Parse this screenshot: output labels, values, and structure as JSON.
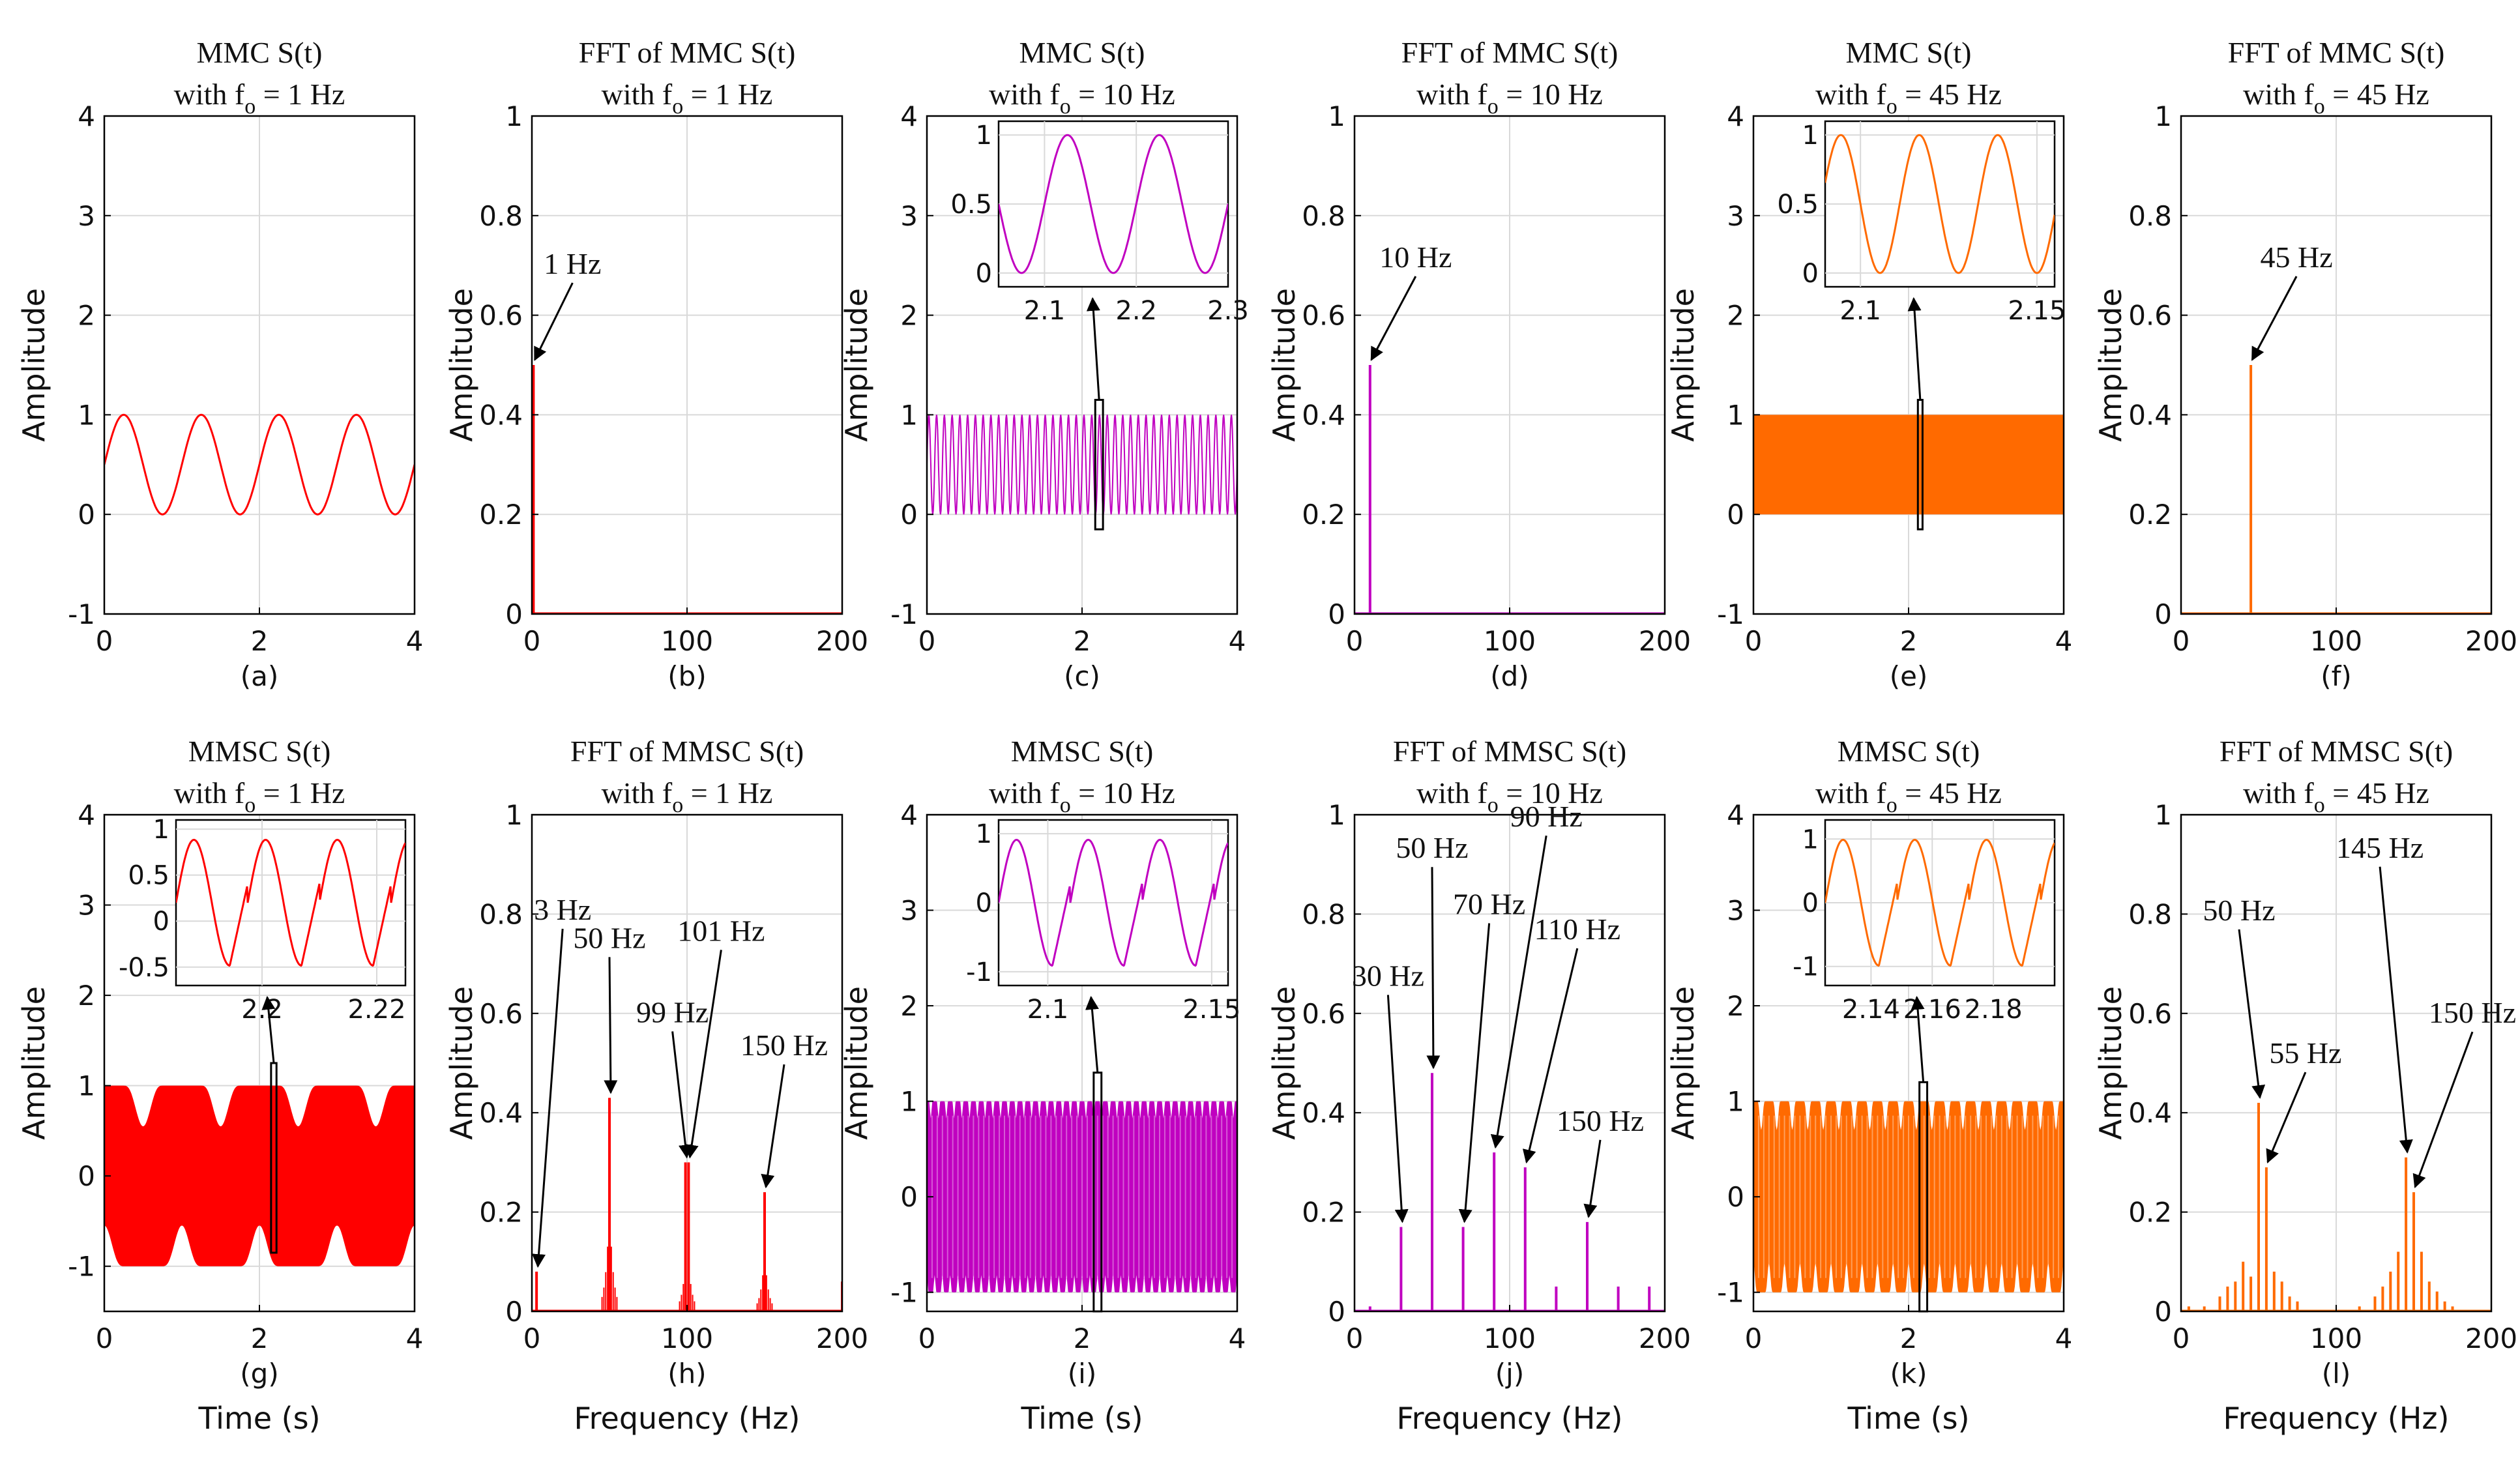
{
  "figure": {
    "colors": {
      "red": "#ff0000",
      "magenta": "#c000c0",
      "orange": "#ff6a00",
      "arrow": "#000000"
    }
  },
  "chart_data": [
    {
      "id": "a",
      "type": "line",
      "panel_label": "(a)",
      "title": [
        "MMC S(t)",
        "with f",
        "o",
        " = 1 Hz"
      ],
      "xlabel": "",
      "ylabel": "Amplitude",
      "xlim": [
        0,
        4
      ],
      "ylim": [
        -1,
        4
      ],
      "xticks": [
        "0",
        "2",
        "4"
      ],
      "yticks": [
        "-1",
        "0",
        "1",
        "2",
        "3",
        "4"
      ],
      "color": "red",
      "series": [
        {
          "name": "S(t)",
          "kind": "sine",
          "freq": 1,
          "offset": 0.5,
          "amp": 0.5,
          "phase": 0.0
        }
      ]
    },
    {
      "id": "b",
      "type": "bar",
      "panel_label": "(b)",
      "title": [
        "FFT of MMC S(t)",
        "with f",
        "o",
        " = 1 Hz"
      ],
      "xlabel": "",
      "ylabel": "Amplitude",
      "xlim": [
        0,
        200
      ],
      "ylim": [
        0,
        1
      ],
      "xticks": [
        "0",
        "100",
        "200"
      ],
      "yticks": [
        "0",
        "0.2",
        "0.4",
        "0.6",
        "0.8",
        "1"
      ],
      "color": "red",
      "peaks": [
        {
          "x": 1,
          "y": 0.5
        }
      ],
      "annotations": [
        {
          "text": "1 Hz",
          "x": 1,
          "y": 0.5
        }
      ]
    },
    {
      "id": "c",
      "type": "line",
      "panel_label": "(c)",
      "title": [
        "MMC S(t)",
        "with f",
        "o",
        " = 10 Hz"
      ],
      "xlabel": "",
      "ylabel": "Amplitude",
      "xlim": [
        0,
        4
      ],
      "ylim": [
        -1,
        4
      ],
      "xticks": [
        "0",
        "2",
        "4"
      ],
      "yticks": [
        "-1",
        "0",
        "1",
        "2",
        "3",
        "4"
      ],
      "color": "magenta",
      "series": [
        {
          "name": "S(t)",
          "kind": "sine",
          "freq": 10,
          "offset": 0.5,
          "amp": 0.5,
          "phase": 0.0
        }
      ],
      "inset": {
        "xlim": [
          2.05,
          2.3
        ],
        "ylim": [
          -0.1,
          1.1
        ],
        "xticks": [
          "2.1",
          "2.2",
          "2.3"
        ],
        "yticks": [
          "0",
          "0.5",
          "1"
        ],
        "zoom_box": [
          2.17,
          2.27,
          -0.15,
          1.15
        ],
        "series": [
          {
            "kind": "sine",
            "freq": 10,
            "offset": 0.5,
            "amp": 0.5,
            "phase": 0.0
          }
        ]
      }
    },
    {
      "id": "d",
      "type": "bar",
      "panel_label": "(d)",
      "title": [
        "FFT of MMC S(t)",
        "with f",
        "o",
        " = 10 Hz"
      ],
      "xlabel": "",
      "ylabel": "Amplitude",
      "xlim": [
        0,
        200
      ],
      "ylim": [
        0,
        1
      ],
      "xticks": [
        "0",
        "100",
        "200"
      ],
      "yticks": [
        "0",
        "0.2",
        "0.4",
        "0.6",
        "0.8",
        "1"
      ],
      "color": "magenta",
      "peaks": [
        {
          "x": 10,
          "y": 0.5
        }
      ],
      "annotations": [
        {
          "text": "10 Hz",
          "x": 10,
          "y": 0.5
        }
      ]
    },
    {
      "id": "e",
      "type": "line",
      "panel_label": "(e)",
      "title": [
        "MMC S(t)",
        "with f",
        "o",
        " = 45 Hz"
      ],
      "xlabel": "",
      "ylabel": "Amplitude",
      "xlim": [
        0,
        4
      ],
      "ylim": [
        -1,
        4
      ],
      "xticks": [
        "0",
        "2",
        "4"
      ],
      "yticks": [
        "-1",
        "0",
        "1",
        "2",
        "3",
        "4"
      ],
      "color": "orange",
      "series": [
        {
          "name": "S(t)",
          "kind": "sine",
          "freq": 45,
          "offset": 0.5,
          "amp": 0.5,
          "phase": 0.0
        }
      ],
      "inset": {
        "xlim": [
          2.09,
          2.155
        ],
        "ylim": [
          -0.1,
          1.1
        ],
        "xticks": [
          "2.1",
          "2.15"
        ],
        "yticks": [
          "0",
          "0.5",
          "1"
        ],
        "zoom_box": [
          2.12,
          2.18,
          -0.15,
          1.15
        ],
        "series": [
          {
            "kind": "sine",
            "freq": 45,
            "offset": 0.5,
            "amp": 0.5,
            "phase": 0.0
          }
        ]
      }
    },
    {
      "id": "f",
      "type": "bar",
      "panel_label": "(f)",
      "title": [
        "FFT of MMC S(t)",
        "with f",
        "o",
        " = 45 Hz"
      ],
      "xlabel": "",
      "ylabel": "Amplitude",
      "xlim": [
        0,
        200
      ],
      "ylim": [
        0,
        1
      ],
      "xticks": [
        "0",
        "100",
        "200"
      ],
      "yticks": [
        "0",
        "0.2",
        "0.4",
        "0.6",
        "0.8",
        "1"
      ],
      "color": "orange",
      "peaks": [
        {
          "x": 45,
          "y": 0.5
        }
      ],
      "annotations": [
        {
          "text": "45 Hz",
          "x": 45,
          "y": 0.5
        }
      ]
    },
    {
      "id": "g",
      "type": "line",
      "panel_label": "(g)",
      "title": [
        "MMSC S(t)",
        "with f",
        "o",
        " = 1 Hz"
      ],
      "xlabel": "Time (s)",
      "ylabel": "Amplitude",
      "xlim": [
        0,
        4
      ],
      "ylim": [
        -1.5,
        4
      ],
      "xticks": [
        "0",
        "2",
        "4"
      ],
      "yticks": [
        "-1",
        "0",
        "1",
        "2",
        "3",
        "4"
      ],
      "color": "red",
      "series": [
        {
          "name": "S(t)",
          "kind": "dense_envelope",
          "upper": 1,
          "lower": -1,
          "notch_depth": 0.45,
          "notch_period": 1.0
        }
      ],
      "inset": {
        "xlim": [
          2.185,
          2.225
        ],
        "ylim": [
          -0.7,
          1.1
        ],
        "xticks": [
          "2.2",
          "2.22"
        ],
        "yticks": [
          "-0.5",
          "0",
          "0.5",
          "1"
        ],
        "zoom_box": [
          2.15,
          2.22,
          -0.85,
          1.25
        ],
        "series": [
          {
            "kind": "sawsine"
          }
        ]
      }
    },
    {
      "id": "h",
      "type": "bar",
      "panel_label": "(h)",
      "title": [
        "FFT of MMSC S(t)",
        "with f",
        "o",
        " = 1 Hz"
      ],
      "xlabel": "Frequency (Hz)",
      "ylabel": "Amplitude",
      "xlim": [
        0,
        200
      ],
      "ylim": [
        0,
        1
      ],
      "xticks": [
        "0",
        "100",
        "200"
      ],
      "yticks": [
        "0",
        "0.2",
        "0.4",
        "0.6",
        "0.8",
        "1"
      ],
      "color": "red",
      "peaks": [
        {
          "x": 3,
          "y": 0.08
        },
        {
          "x": 50,
          "y": 0.43
        },
        {
          "x": 99,
          "y": 0.3
        },
        {
          "x": 101,
          "y": 0.3
        },
        {
          "x": 150,
          "y": 0.24
        },
        {
          "x": 200,
          "y": 0.06
        }
      ],
      "annotations": [
        {
          "text": "3 Hz",
          "x": 3,
          "y": 0.08
        },
        {
          "text": "50 Hz",
          "x": 50,
          "y": 0.43
        },
        {
          "text": "99 Hz",
          "x": 99,
          "y": 0.3
        },
        {
          "text": "101 Hz",
          "x": 101,
          "y": 0.3
        },
        {
          "text": "150 Hz",
          "x": 150,
          "y": 0.24
        }
      ]
    },
    {
      "id": "i",
      "type": "line",
      "panel_label": "(i)",
      "title": [
        "MMSC S(t)",
        "with f",
        "o",
        " = 10 Hz"
      ],
      "xlabel": "Time (s)",
      "ylabel": "Amplitude",
      "xlim": [
        0,
        4
      ],
      "ylim": [
        -1.2,
        4
      ],
      "xticks": [
        "0",
        "2",
        "4"
      ],
      "yticks": [
        "-1",
        "0",
        "1",
        "2",
        "3",
        "4"
      ],
      "color": "magenta",
      "series": [
        {
          "name": "S(t)",
          "kind": "dense_envelope",
          "upper": 1,
          "lower": -1,
          "notch_depth": 0.18,
          "notch_period": 0.1
        }
      ],
      "inset": {
        "xlim": [
          2.085,
          2.155
        ],
        "ylim": [
          -1.2,
          1.2
        ],
        "xticks": [
          "2.1",
          "2.15"
        ],
        "yticks": [
          "-1",
          "0",
          "1"
        ],
        "zoom_box": [
          2.15,
          2.25,
          -1.2,
          1.3
        ],
        "series": [
          {
            "kind": "sawsine"
          }
        ]
      }
    },
    {
      "id": "j",
      "type": "bar",
      "panel_label": "(j)",
      "title": [
        "FFT of MMSC S(t)",
        "with f",
        "o",
        " = 10 Hz"
      ],
      "xlabel": "Frequency (Hz)",
      "ylabel": "Amplitude",
      "xlim": [
        0,
        200
      ],
      "ylim": [
        0,
        1
      ],
      "xticks": [
        "0",
        "100",
        "200"
      ],
      "yticks": [
        "0",
        "0.2",
        "0.4",
        "0.6",
        "0.8",
        "1"
      ],
      "color": "magenta",
      "peaks": [
        {
          "x": 10,
          "y": 0.01
        },
        {
          "x": 30,
          "y": 0.17
        },
        {
          "x": 50,
          "y": 0.48
        },
        {
          "x": 70,
          "y": 0.17
        },
        {
          "x": 90,
          "y": 0.32
        },
        {
          "x": 110,
          "y": 0.29
        },
        {
          "x": 130,
          "y": 0.05
        },
        {
          "x": 150,
          "y": 0.18
        },
        {
          "x": 170,
          "y": 0.05
        },
        {
          "x": 190,
          "y": 0.05
        }
      ],
      "annotations": [
        {
          "text": "30 Hz",
          "x": 30,
          "y": 0.17
        },
        {
          "text": "50 Hz",
          "x": 50,
          "y": 0.48
        },
        {
          "text": "70 Hz",
          "x": 70,
          "y": 0.17
        },
        {
          "text": "90 Hz",
          "x": 90,
          "y": 0.32
        },
        {
          "text": "110 Hz",
          "x": 110,
          "y": 0.29
        },
        {
          "text": "150 Hz",
          "x": 150,
          "y": 0.18
        }
      ]
    },
    {
      "id": "k",
      "type": "line",
      "panel_label": "(k)",
      "title": [
        "MMSC S(t)",
        "with f",
        "o",
        " = 45 Hz"
      ],
      "xlabel": "Time (s)",
      "ylabel": "Amplitude",
      "xlim": [
        0,
        4
      ],
      "ylim": [
        -1.2,
        4
      ],
      "xticks": [
        "0",
        "2",
        "4"
      ],
      "yticks": [
        "-1",
        "0",
        "1",
        "2",
        "3",
        "4"
      ],
      "color": "orange",
      "series": [
        {
          "name": "S(t)",
          "kind": "dense_envelope",
          "upper": 1,
          "lower": -1,
          "notch_depth": 0.3,
          "notch_period": 0.2
        }
      ],
      "inset": {
        "xlim": [
          2.125,
          2.2
        ],
        "ylim": [
          -1.3,
          1.3
        ],
        "xticks": [
          "2.14",
          "2.16",
          "2.18"
        ],
        "yticks": [
          "-1",
          "0",
          "1"
        ],
        "zoom_box": [
          2.14,
          2.24,
          -1.2,
          1.2
        ],
        "series": [
          {
            "kind": "sawsine"
          }
        ]
      }
    },
    {
      "id": "l",
      "type": "bar",
      "panel_label": "(l)",
      "title": [
        "FFT of MMSC S(t)",
        "with f",
        "o",
        " = 45 Hz"
      ],
      "xlabel": "Frequency (Hz)",
      "ylabel": "Amplitude",
      "xlim": [
        0,
        200
      ],
      "ylim": [
        0,
        1
      ],
      "xticks": [
        "0",
        "100",
        "200"
      ],
      "yticks": [
        "0",
        "0.2",
        "0.4",
        "0.6",
        "0.8",
        "1"
      ],
      "color": "orange",
      "peaks": [
        {
          "x": 5,
          "y": 0.01
        },
        {
          "x": 15,
          "y": 0.01
        },
        {
          "x": 25,
          "y": 0.03
        },
        {
          "x": 30,
          "y": 0.05
        },
        {
          "x": 35,
          "y": 0.06
        },
        {
          "x": 40,
          "y": 0.1
        },
        {
          "x": 45,
          "y": 0.07
        },
        {
          "x": 50,
          "y": 0.42
        },
        {
          "x": 55,
          "y": 0.29
        },
        {
          "x": 60,
          "y": 0.08
        },
        {
          "x": 65,
          "y": 0.06
        },
        {
          "x": 70,
          "y": 0.03
        },
        {
          "x": 75,
          "y": 0.02
        },
        {
          "x": 115,
          "y": 0.01
        },
        {
          "x": 125,
          "y": 0.03
        },
        {
          "x": 130,
          "y": 0.05
        },
        {
          "x": 135,
          "y": 0.08
        },
        {
          "x": 140,
          "y": 0.12
        },
        {
          "x": 145,
          "y": 0.31
        },
        {
          "x": 150,
          "y": 0.24
        },
        {
          "x": 155,
          "y": 0.12
        },
        {
          "x": 160,
          "y": 0.06
        },
        {
          "x": 165,
          "y": 0.04
        },
        {
          "x": 170,
          "y": 0.02
        },
        {
          "x": 175,
          "y": 0.01
        }
      ],
      "annotations": [
        {
          "text": "50 Hz",
          "x": 50,
          "y": 0.42
        },
        {
          "text": "55 Hz",
          "x": 55,
          "y": 0.29
        },
        {
          "text": "145 Hz",
          "x": 145,
          "y": 0.31
        },
        {
          "text": "150 Hz",
          "x": 150,
          "y": 0.24
        }
      ]
    }
  ]
}
